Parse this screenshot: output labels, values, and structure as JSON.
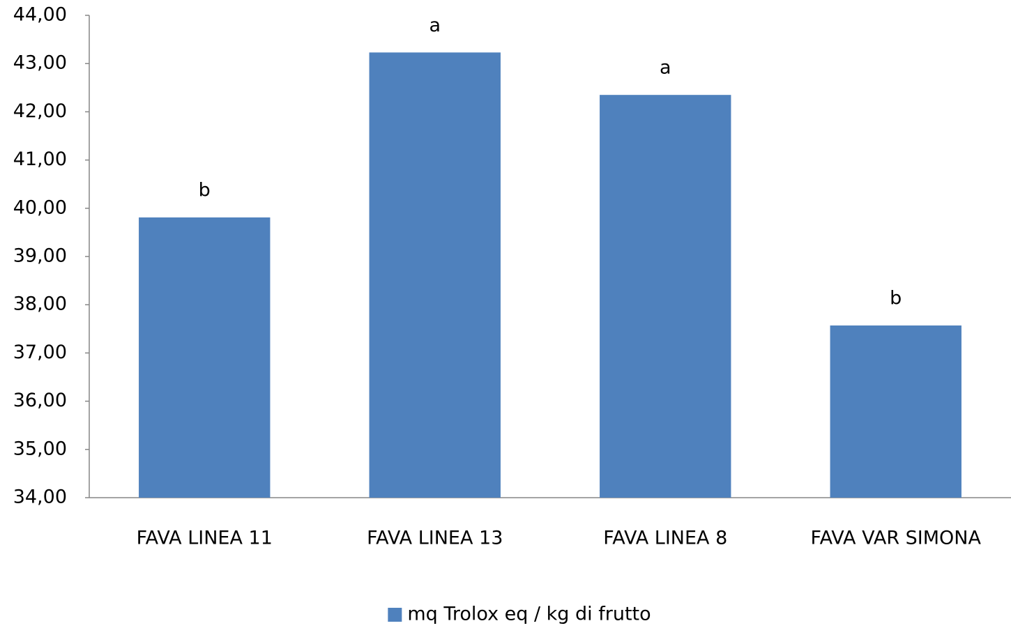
{
  "chart_data": {
    "type": "bar",
    "categories": [
      "FAVA LINEA 11",
      "FAVA LINEA 13",
      "FAVA LINEA 8",
      "FAVA VAR SIMONA"
    ],
    "series": [
      {
        "name": "mq Trolox eq / kg di frutto",
        "color": "#4f81bd",
        "values": [
          39.81,
          43.23,
          42.35,
          37.57
        ]
      }
    ],
    "annotations": [
      "b",
      "a",
      "a",
      "b"
    ],
    "ylim": [
      34,
      44
    ],
    "yticks": [
      {
        "value": 34,
        "label": "34,00"
      },
      {
        "value": 35,
        "label": "35,00"
      },
      {
        "value": 36,
        "label": "36,00"
      },
      {
        "value": 37,
        "label": "37,00"
      },
      {
        "value": 38,
        "label": "38,00"
      },
      {
        "value": 39,
        "label": "39,00"
      },
      {
        "value": 40,
        "label": "40,00"
      },
      {
        "value": 41,
        "label": "41,00"
      },
      {
        "value": 42,
        "label": "42,00"
      },
      {
        "value": 43,
        "label": "43,00"
      },
      {
        "value": 44,
        "label": "44,00"
      }
    ],
    "grid": false,
    "legend": "bottom"
  }
}
